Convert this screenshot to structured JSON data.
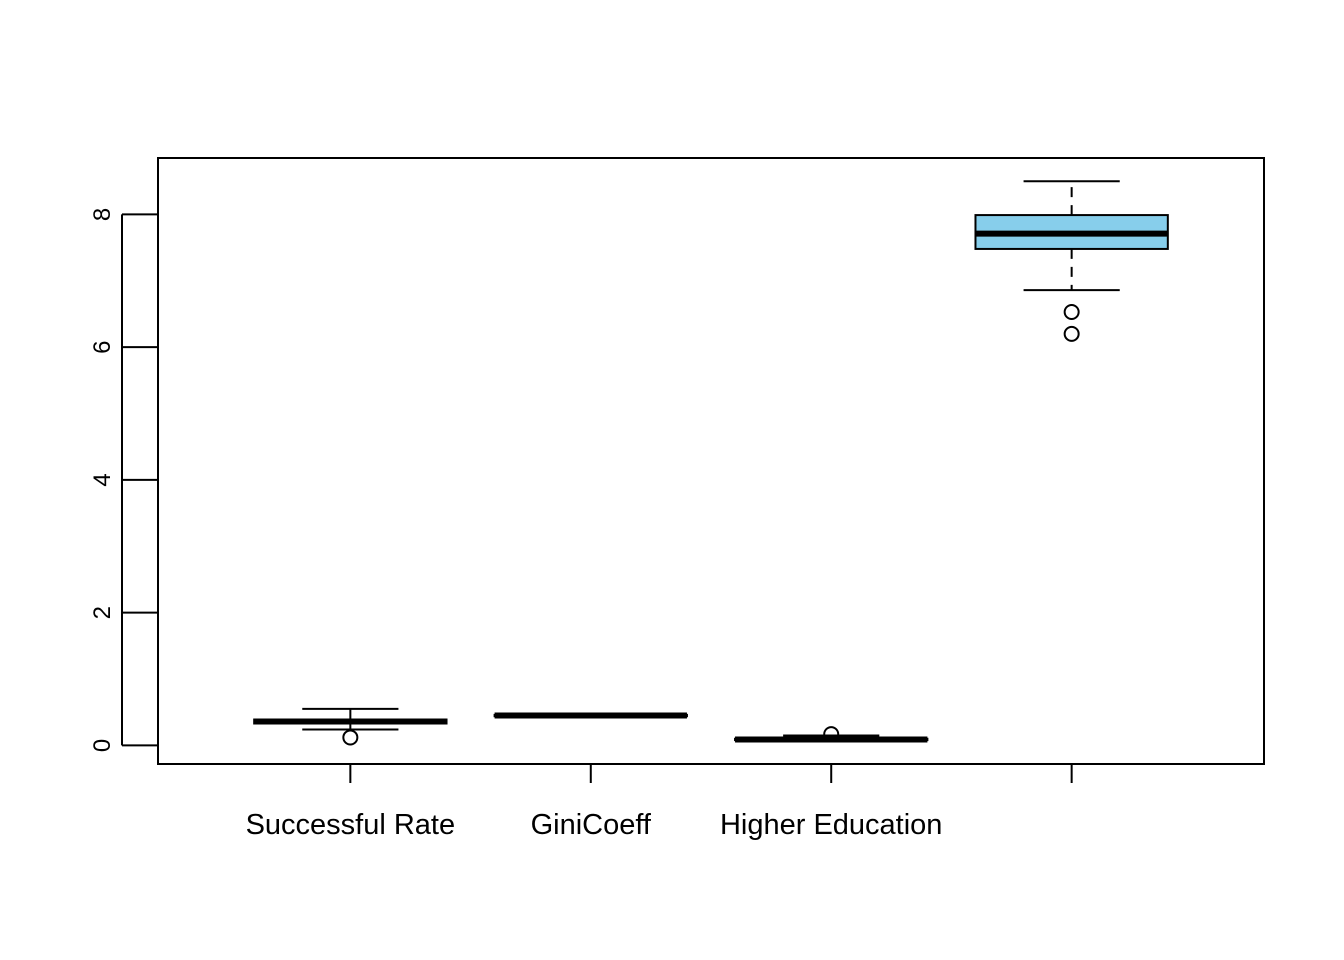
{
  "chart_data": {
    "type": "box",
    "categories": [
      "Successful Rate",
      "GiniCoeff",
      "Higher Education",
      ""
    ],
    "boxes": [
      {
        "category": "Successful Rate",
        "whisker_low": 0.24,
        "q1": 0.33,
        "median": 0.36,
        "q3": 0.39,
        "whisker_high": 0.55,
        "outliers": [
          0.12
        ]
      },
      {
        "category": "GiniCoeff",
        "whisker_low": 0.43,
        "q1": 0.44,
        "median": 0.45,
        "q3": 0.46,
        "whisker_high": 0.48,
        "outliers": []
      },
      {
        "category": "Higher Education",
        "whisker_low": 0.07,
        "q1": 0.08,
        "median": 0.09,
        "q3": 0.1,
        "whisker_high": 0.15,
        "outliers": [
          0.17
        ]
      },
      {
        "category": "",
        "whisker_low": 6.86,
        "q1": 7.48,
        "median": 7.71,
        "q3": 7.99,
        "whisker_high": 8.5,
        "outliers": [
          6.53,
          6.2
        ]
      }
    ],
    "yticks": [
      0,
      2,
      4,
      6,
      8
    ],
    "ylim": [
      -0.28,
      8.85
    ],
    "fill_colors": [
      "#ffffff",
      "#ffffff",
      "#ffffff",
      "#87ceeb"
    ],
    "title": "",
    "xlabel": "",
    "ylabel": "",
    "grid": false
  }
}
